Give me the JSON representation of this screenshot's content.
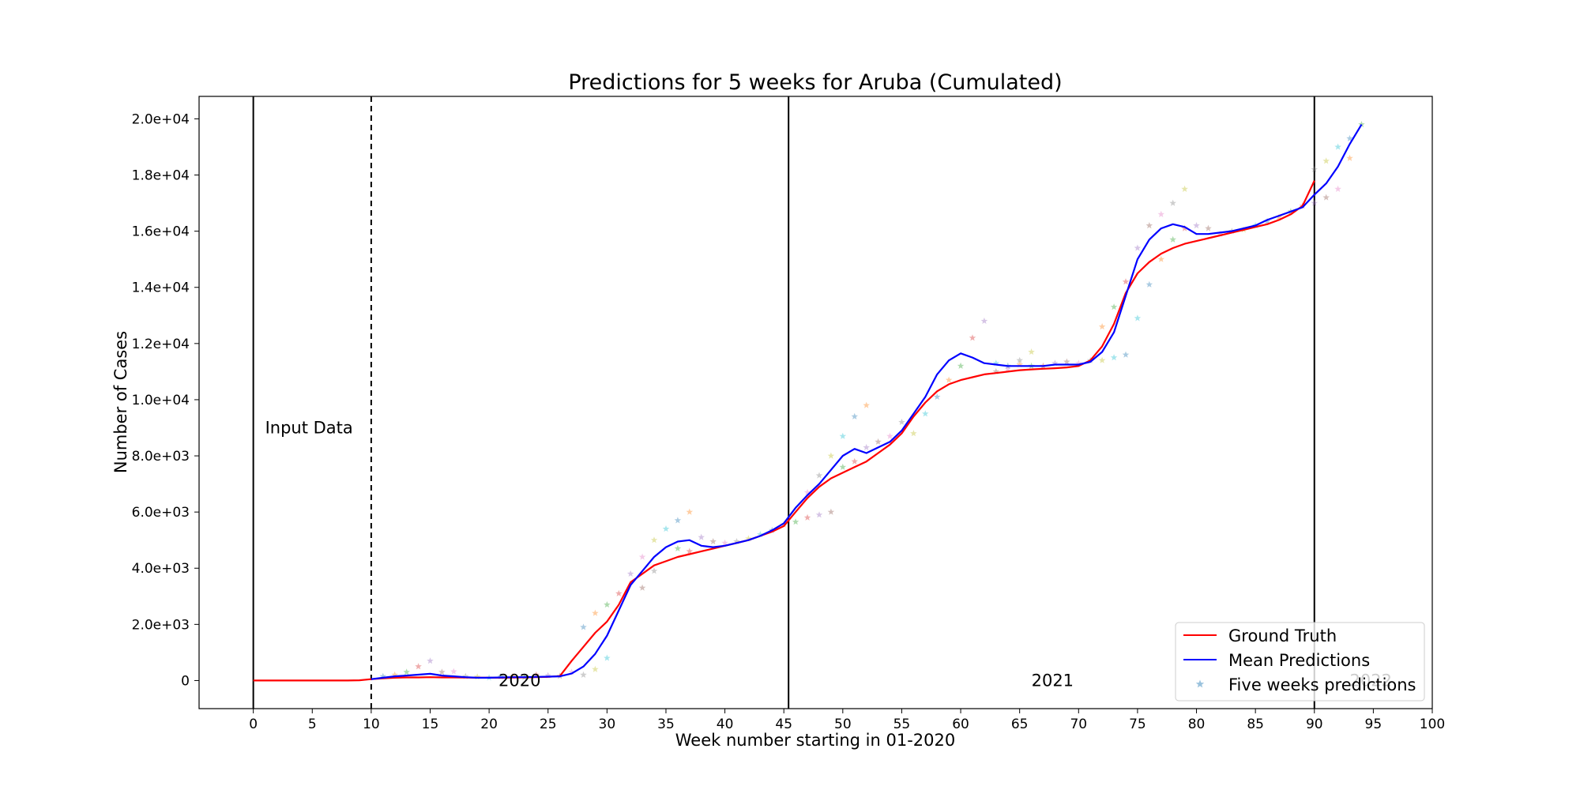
{
  "chart_data": {
    "type": "line",
    "title": "Predictions for 5 weeks for Aruba (Cumulated)",
    "xlabel": "Week number starting in 01-2020",
    "ylabel": "Number of Cases",
    "xlim": [
      -4.6,
      100
    ],
    "ylim": [
      -1000,
      20800
    ],
    "x_ticks": [
      0,
      5,
      10,
      15,
      20,
      25,
      30,
      35,
      40,
      45,
      50,
      55,
      60,
      65,
      70,
      75,
      80,
      85,
      90,
      95,
      100
    ],
    "y_ticks": [
      {
        "value": 0,
        "label": "0"
      },
      {
        "value": 2000,
        "label": "2.0e+03"
      },
      {
        "value": 4000,
        "label": "4.0e+03"
      },
      {
        "value": 6000,
        "label": "6.0e+03"
      },
      {
        "value": 8000,
        "label": "8.0e+03"
      },
      {
        "value": 10000,
        "label": "1.0e+04"
      },
      {
        "value": 12000,
        "label": "1.2e+04"
      },
      {
        "value": 14000,
        "label": "1.4e+04"
      },
      {
        "value": 16000,
        "label": "1.6e+04"
      },
      {
        "value": 18000,
        "label": "1.8e+04"
      },
      {
        "value": 20000,
        "label": "2.0e+04"
      }
    ],
    "grid": false,
    "legend_position": "bottom-right",
    "vertical_lines": [
      {
        "x": 0,
        "style": "solid"
      },
      {
        "x": 10,
        "style": "dashed"
      },
      {
        "x": 45.4,
        "style": "solid"
      },
      {
        "x": 90,
        "style": "solid"
      }
    ],
    "annotations": [
      {
        "text": "Input Data",
        "x": 1,
        "y": 9000
      },
      {
        "text": "2020",
        "x": 20.8,
        "y": 0
      },
      {
        "text": "2021",
        "x": 66,
        "y": 0
      },
      {
        "text": "2022",
        "x": 93,
        "y": 0,
        "faded": true
      }
    ],
    "series": [
      {
        "name": "Ground Truth",
        "color": "#ff0000",
        "points": [
          [
            0,
            0
          ],
          [
            1,
            0
          ],
          [
            2,
            0
          ],
          [
            3,
            0
          ],
          [
            4,
            0
          ],
          [
            5,
            0
          ],
          [
            6,
            0
          ],
          [
            7,
            0
          ],
          [
            8,
            0
          ],
          [
            9,
            10
          ],
          [
            10,
            50
          ],
          [
            11,
            80
          ],
          [
            12,
            100
          ],
          [
            13,
            110
          ],
          [
            14,
            110
          ],
          [
            15,
            120
          ],
          [
            16,
            110
          ],
          [
            17,
            110
          ],
          [
            18,
            105
          ],
          [
            19,
            100
          ],
          [
            20,
            100
          ],
          [
            21,
            100
          ],
          [
            22,
            105
          ],
          [
            23,
            110
          ],
          [
            24,
            120
          ],
          [
            25,
            130
          ],
          [
            26,
            160
          ],
          [
            27,
            700
          ],
          [
            28,
            1200
          ],
          [
            29,
            1700
          ],
          [
            30,
            2100
          ],
          [
            31,
            2700
          ],
          [
            32,
            3500
          ],
          [
            33,
            3800
          ],
          [
            34,
            4100
          ],
          [
            35,
            4250
          ],
          [
            36,
            4400
          ],
          [
            37,
            4500
          ],
          [
            38,
            4600
          ],
          [
            39,
            4700
          ],
          [
            40,
            4800
          ],
          [
            41,
            4900
          ],
          [
            42,
            5000
          ],
          [
            43,
            5150
          ],
          [
            44,
            5300
          ],
          [
            45,
            5500
          ],
          [
            46,
            6000
          ],
          [
            47,
            6500
          ],
          [
            48,
            6900
          ],
          [
            49,
            7200
          ],
          [
            50,
            7400
          ],
          [
            51,
            7600
          ],
          [
            52,
            7800
          ],
          [
            53,
            8100
          ],
          [
            54,
            8400
          ],
          [
            55,
            8800
          ],
          [
            56,
            9400
          ],
          [
            57,
            9900
          ],
          [
            58,
            10300
          ],
          [
            59,
            10550
          ],
          [
            60,
            10700
          ],
          [
            61,
            10800
          ],
          [
            62,
            10900
          ],
          [
            63,
            10950
          ],
          [
            64,
            11000
          ],
          [
            65,
            11050
          ],
          [
            66,
            11080
          ],
          [
            67,
            11100
          ],
          [
            68,
            11120
          ],
          [
            69,
            11150
          ],
          [
            70,
            11200
          ],
          [
            71,
            11400
          ],
          [
            72,
            11900
          ],
          [
            73,
            12700
          ],
          [
            74,
            13800
          ],
          [
            75,
            14500
          ],
          [
            76,
            14900
          ],
          [
            77,
            15200
          ],
          [
            78,
            15400
          ],
          [
            79,
            15550
          ],
          [
            80,
            15650
          ],
          [
            81,
            15750
          ],
          [
            82,
            15850
          ],
          [
            83,
            15950
          ],
          [
            84,
            16050
          ],
          [
            85,
            16150
          ],
          [
            86,
            16250
          ],
          [
            87,
            16400
          ],
          [
            88,
            16600
          ],
          [
            89,
            16900
          ],
          [
            90,
            17800
          ]
        ]
      },
      {
        "name": "Mean Predictions",
        "color": "#0000ff",
        "points": [
          [
            10,
            50
          ],
          [
            11,
            100
          ],
          [
            12,
            150
          ],
          [
            13,
            180
          ],
          [
            14,
            210
          ],
          [
            15,
            240
          ],
          [
            16,
            180
          ],
          [
            17,
            150
          ],
          [
            18,
            120
          ],
          [
            19,
            100
          ],
          [
            20,
            100
          ],
          [
            21,
            110
          ],
          [
            22,
            120
          ],
          [
            23,
            120
          ],
          [
            24,
            130
          ],
          [
            25,
            140
          ],
          [
            26,
            150
          ],
          [
            27,
            250
          ],
          [
            28,
            500
          ],
          [
            29,
            950
          ],
          [
            30,
            1600
          ],
          [
            31,
            2500
          ],
          [
            32,
            3400
          ],
          [
            33,
            3900
          ],
          [
            34,
            4400
          ],
          [
            35,
            4750
          ],
          [
            36,
            4950
          ],
          [
            37,
            5000
          ],
          [
            38,
            4800
          ],
          [
            39,
            4750
          ],
          [
            40,
            4800
          ],
          [
            41,
            4900
          ],
          [
            42,
            5000
          ],
          [
            43,
            5150
          ],
          [
            44,
            5350
          ],
          [
            45,
            5600
          ],
          [
            46,
            6150
          ],
          [
            47,
            6600
          ],
          [
            48,
            7000
          ],
          [
            49,
            7500
          ],
          [
            50,
            8000
          ],
          [
            51,
            8250
          ],
          [
            52,
            8100
          ],
          [
            53,
            8300
          ],
          [
            54,
            8500
          ],
          [
            55,
            8900
          ],
          [
            56,
            9500
          ],
          [
            57,
            10100
          ],
          [
            58,
            10900
          ],
          [
            59,
            11400
          ],
          [
            60,
            11650
          ],
          [
            61,
            11500
          ],
          [
            62,
            11300
          ],
          [
            63,
            11250
          ],
          [
            64,
            11200
          ],
          [
            65,
            11200
          ],
          [
            66,
            11200
          ],
          [
            67,
            11200
          ],
          [
            68,
            11250
          ],
          [
            69,
            11250
          ],
          [
            70,
            11250
          ],
          [
            71,
            11350
          ],
          [
            72,
            11700
          ],
          [
            73,
            12400
          ],
          [
            74,
            13700
          ],
          [
            75,
            15000
          ],
          [
            76,
            15700
          ],
          [
            77,
            16100
          ],
          [
            78,
            16250
          ],
          [
            79,
            16150
          ],
          [
            80,
            15900
          ],
          [
            81,
            15900
          ],
          [
            82,
            15950
          ],
          [
            83,
            16000
          ],
          [
            84,
            16100
          ],
          [
            85,
            16200
          ],
          [
            86,
            16400
          ],
          [
            87,
            16550
          ],
          [
            88,
            16700
          ],
          [
            89,
            16850
          ],
          [
            90,
            17300
          ],
          [
            91,
            17700
          ],
          [
            92,
            18300
          ],
          [
            93,
            19100
          ],
          [
            94,
            19800
          ]
        ]
      },
      {
        "name": "Five weeks predictions",
        "color": "#1f77b4",
        "marker": "star",
        "points": [
          [
            11,
            150
          ],
          [
            12,
            200
          ],
          [
            13,
            300
          ],
          [
            14,
            500
          ],
          [
            15,
            700
          ],
          [
            16,
            300
          ],
          [
            17,
            320
          ],
          [
            18,
            150
          ],
          [
            19,
            130
          ],
          [
            20,
            100
          ],
          [
            21,
            140
          ],
          [
            22,
            150
          ],
          [
            23,
            120
          ],
          [
            24,
            200
          ],
          [
            25,
            180
          ],
          [
            26,
            160
          ],
          [
            27,
            300
          ],
          [
            28,
            200
          ],
          [
            29,
            400
          ],
          [
            30,
            800
          ],
          [
            28,
            1900
          ],
          [
            29,
            2400
          ],
          [
            30,
            2700
          ],
          [
            31,
            3100
          ],
          [
            32,
            3800
          ],
          [
            33,
            3300
          ],
          [
            33,
            4400
          ],
          [
            34,
            3900
          ],
          [
            34,
            5000
          ],
          [
            35,
            5400
          ],
          [
            36,
            5700
          ],
          [
            37,
            6000
          ],
          [
            36,
            4700
          ],
          [
            37,
            4600
          ],
          [
            38,
            5100
          ],
          [
            39,
            4950
          ],
          [
            40,
            4900
          ],
          [
            41,
            4950
          ],
          [
            42,
            5050
          ],
          [
            43,
            5200
          ],
          [
            44,
            5350
          ],
          [
            45,
            5550
          ],
          [
            46,
            5650
          ],
          [
            47,
            5800
          ],
          [
            48,
            5900
          ],
          [
            49,
            6000
          ],
          [
            47,
            6700
          ],
          [
            48,
            7300
          ],
          [
            49,
            8000
          ],
          [
            50,
            8700
          ],
          [
            51,
            9400
          ],
          [
            52,
            9800
          ],
          [
            50,
            7600
          ],
          [
            51,
            7800
          ],
          [
            52,
            8300
          ],
          [
            53,
            8500
          ],
          [
            54,
            8700
          ],
          [
            55,
            9200
          ],
          [
            56,
            8800
          ],
          [
            57,
            9500
          ],
          [
            58,
            10100
          ],
          [
            59,
            10700
          ],
          [
            60,
            11200
          ],
          [
            61,
            12200
          ],
          [
            62,
            12800
          ],
          [
            63,
            11000
          ],
          [
            64,
            11100
          ],
          [
            65,
            11400
          ],
          [
            66,
            11700
          ],
          [
            63,
            11300
          ],
          [
            64,
            11200
          ],
          [
            65,
            11250
          ],
          [
            66,
            11200
          ],
          [
            67,
            11200
          ],
          [
            68,
            11300
          ],
          [
            69,
            11350
          ],
          [
            70,
            11300
          ],
          [
            71,
            11400
          ],
          [
            72,
            11400
          ],
          [
            73,
            11500
          ],
          [
            74,
            11600
          ],
          [
            72,
            12600
          ],
          [
            73,
            13300
          ],
          [
            74,
            14200
          ],
          [
            75,
            15400
          ],
          [
            76,
            16200
          ],
          [
            77,
            16600
          ],
          [
            78,
            17000
          ],
          [
            79,
            17500
          ],
          [
            75,
            12900
          ],
          [
            76,
            14100
          ],
          [
            77,
            15000
          ],
          [
            78,
            15700
          ],
          [
            79,
            16100
          ],
          [
            80,
            16200
          ],
          [
            81,
            16100
          ],
          [
            82,
            15900
          ],
          [
            83,
            16000
          ],
          [
            84,
            16050
          ],
          [
            85,
            16200
          ],
          [
            86,
            16350
          ],
          [
            87,
            16500
          ],
          [
            88,
            16700
          ],
          [
            89,
            16900
          ],
          [
            90,
            17000
          ],
          [
            91,
            17200
          ],
          [
            92,
            17500
          ],
          [
            90,
            18200
          ],
          [
            91,
            18500
          ],
          [
            92,
            19000
          ],
          [
            93,
            19300
          ],
          [
            93,
            18600
          ],
          [
            94,
            19800
          ]
        ]
      }
    ]
  }
}
